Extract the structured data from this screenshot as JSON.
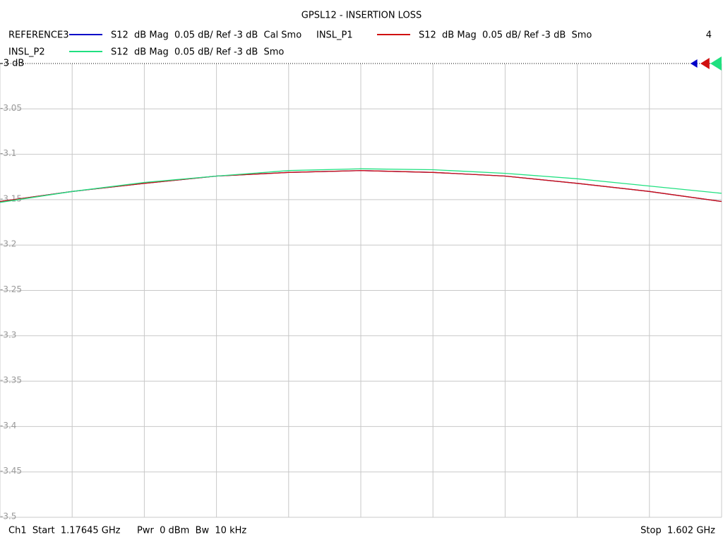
{
  "chart_data": {
    "type": "line",
    "title": "GPSL12 - INSERTION LOSS",
    "channel_number": "4",
    "x": [
      1.17645,
      1.219005,
      1.26156,
      1.304115,
      1.34667,
      1.389225,
      1.43178,
      1.474335,
      1.51689,
      1.559445,
      1.602
    ],
    "xlim": [
      1.17645,
      1.602
    ],
    "x_divisions": 10,
    "series": [
      {
        "name": "REFERENCE3",
        "description": "S12  dB Mag  0.05 dB/ Ref -3 dB  Cal Smo",
        "color": "#0000c8",
        "values": [
          -3.152,
          -3.141,
          -3.132,
          -3.124,
          -3.12,
          -3.118,
          -3.12,
          -3.124,
          -3.132,
          -3.141,
          -3.152
        ]
      },
      {
        "name": "INSL_P1",
        "description": "S12  dB Mag  0.05 dB/ Ref -3 dB  Smo",
        "color": "#d01010",
        "values": [
          -3.152,
          -3.141,
          -3.132,
          -3.124,
          -3.12,
          -3.118,
          -3.12,
          -3.124,
          -3.132,
          -3.141,
          -3.152
        ]
      },
      {
        "name": "INSL_P2",
        "description": "S12  dB Mag  0.05 dB/ Ref -3 dB  Smo",
        "color": "#20e080",
        "values": [
          -3.153,
          -3.141,
          -3.131,
          -3.124,
          -3.118,
          -3.116,
          -3.117,
          -3.121,
          -3.127,
          -3.135,
          -3.143
        ]
      }
    ],
    "ylim": [
      -3.5,
      -3
    ],
    "yticks": [
      {
        "value": -3,
        "label": "-3 dB"
      },
      -3.05,
      -3.1,
      -3.15,
      -3.2,
      -3.25,
      -3.3,
      -3.35,
      -3.4,
      -3.45,
      -3.5
    ],
    "grid": true,
    "footer": {
      "start": "Ch1  Start  1.17645 GHz",
      "power": "Pwr  0 dBm  Bw  10 kHz",
      "stop": "Stop  1.602 GHz"
    }
  }
}
